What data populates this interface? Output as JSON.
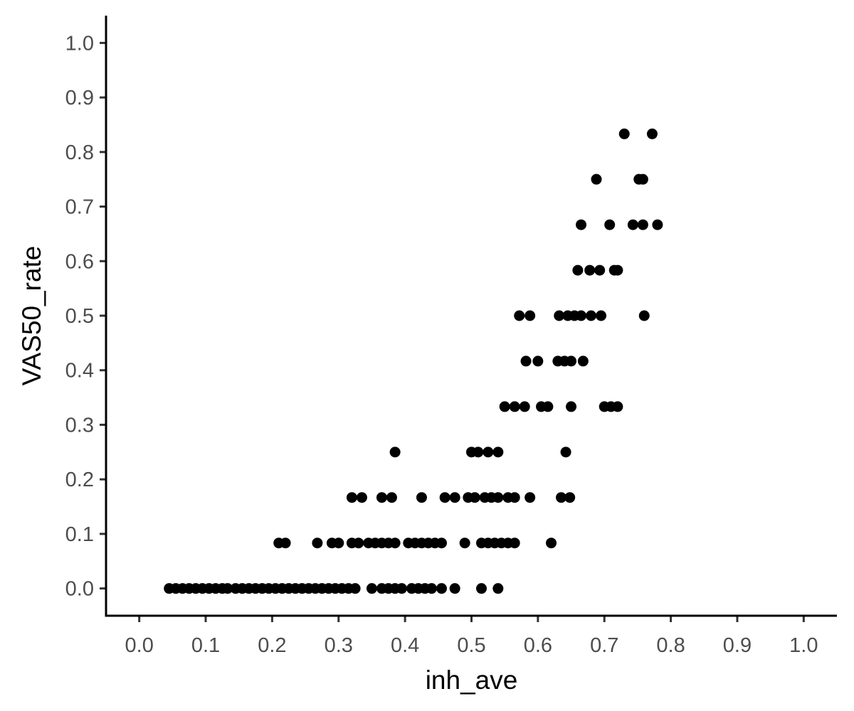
{
  "chart_data": {
    "type": "scatter",
    "xlabel": "inh_ave",
    "ylabel": "VAS50_rate",
    "xlim": [
      -0.05,
      1.05
    ],
    "ylim": [
      -0.05,
      1.05
    ],
    "xticks": [
      "0.0",
      "0.1",
      "0.2",
      "0.3",
      "0.4",
      "0.5",
      "0.6",
      "0.7",
      "0.8",
      "0.9",
      "1.0"
    ],
    "yticks": [
      "0.0",
      "0.1",
      "0.2",
      "0.3",
      "0.4",
      "0.5",
      "0.6",
      "0.7",
      "0.8",
      "0.9",
      "1.0"
    ],
    "grid": false,
    "point_color": "#000000",
    "series": [
      {
        "points": [
          [
            0.045,
            0
          ],
          [
            0.055,
            0
          ],
          [
            0.065,
            0
          ],
          [
            0.075,
            0
          ],
          [
            0.085,
            0
          ],
          [
            0.095,
            0
          ],
          [
            0.105,
            0
          ],
          [
            0.115,
            0
          ],
          [
            0.125,
            0
          ],
          [
            0.133,
            0
          ],
          [
            0.145,
            0
          ],
          [
            0.155,
            0
          ],
          [
            0.165,
            0
          ],
          [
            0.175,
            0
          ],
          [
            0.185,
            0
          ],
          [
            0.195,
            0
          ],
          [
            0.205,
            0
          ],
          [
            0.215,
            0
          ],
          [
            0.225,
            0
          ],
          [
            0.235,
            0
          ],
          [
            0.245,
            0
          ],
          [
            0.255,
            0
          ],
          [
            0.265,
            0
          ],
          [
            0.275,
            0
          ],
          [
            0.285,
            0
          ],
          [
            0.295,
            0
          ],
          [
            0.305,
            0
          ],
          [
            0.315,
            0
          ],
          [
            0.325,
            0
          ],
          [
            0.35,
            0
          ],
          [
            0.365,
            0
          ],
          [
            0.375,
            0
          ],
          [
            0.385,
            0
          ],
          [
            0.395,
            0
          ],
          [
            0.41,
            0
          ],
          [
            0.42,
            0
          ],
          [
            0.43,
            0
          ],
          [
            0.44,
            0
          ],
          [
            0.455,
            0
          ],
          [
            0.475,
            0
          ],
          [
            0.515,
            0
          ],
          [
            0.54,
            0
          ],
          [
            0.21,
            0.0833
          ],
          [
            0.22,
            0.0833
          ],
          [
            0.268,
            0.0833
          ],
          [
            0.29,
            0.0833
          ],
          [
            0.3,
            0.0833
          ],
          [
            0.32,
            0.0833
          ],
          [
            0.33,
            0.0833
          ],
          [
            0.345,
            0.0833
          ],
          [
            0.355,
            0.0833
          ],
          [
            0.365,
            0.0833
          ],
          [
            0.375,
            0.0833
          ],
          [
            0.385,
            0.0833
          ],
          [
            0.405,
            0.0833
          ],
          [
            0.415,
            0.0833
          ],
          [
            0.425,
            0.0833
          ],
          [
            0.435,
            0.0833
          ],
          [
            0.445,
            0.0833
          ],
          [
            0.455,
            0.0833
          ],
          [
            0.49,
            0.0833
          ],
          [
            0.515,
            0.0833
          ],
          [
            0.525,
            0.0833
          ],
          [
            0.535,
            0.0833
          ],
          [
            0.545,
            0.0833
          ],
          [
            0.555,
            0.0833
          ],
          [
            0.565,
            0.0833
          ],
          [
            0.62,
            0.0833
          ],
          [
            0.32,
            0.1667
          ],
          [
            0.335,
            0.1667
          ],
          [
            0.365,
            0.1667
          ],
          [
            0.38,
            0.1667
          ],
          [
            0.425,
            0.1667
          ],
          [
            0.46,
            0.1667
          ],
          [
            0.475,
            0.1667
          ],
          [
            0.495,
            0.1667
          ],
          [
            0.505,
            0.1667
          ],
          [
            0.52,
            0.1667
          ],
          [
            0.53,
            0.1667
          ],
          [
            0.54,
            0.1667
          ],
          [
            0.555,
            0.1667
          ],
          [
            0.565,
            0.1667
          ],
          [
            0.588,
            0.1667
          ],
          [
            0.635,
            0.1667
          ],
          [
            0.648,
            0.1667
          ],
          [
            0.385,
            0.25
          ],
          [
            0.5,
            0.25
          ],
          [
            0.51,
            0.25
          ],
          [
            0.525,
            0.25
          ],
          [
            0.54,
            0.25
          ],
          [
            0.642,
            0.25
          ],
          [
            0.55,
            0.3333
          ],
          [
            0.565,
            0.3333
          ],
          [
            0.58,
            0.3333
          ],
          [
            0.605,
            0.3333
          ],
          [
            0.615,
            0.3333
          ],
          [
            0.65,
            0.3333
          ],
          [
            0.7,
            0.3333
          ],
          [
            0.71,
            0.3333
          ],
          [
            0.72,
            0.3333
          ],
          [
            0.582,
            0.4167
          ],
          [
            0.6,
            0.4167
          ],
          [
            0.63,
            0.4167
          ],
          [
            0.64,
            0.4167
          ],
          [
            0.65,
            0.4167
          ],
          [
            0.668,
            0.4167
          ],
          [
            0.572,
            0.5
          ],
          [
            0.588,
            0.5
          ],
          [
            0.632,
            0.5
          ],
          [
            0.645,
            0.5
          ],
          [
            0.655,
            0.5
          ],
          [
            0.665,
            0.5
          ],
          [
            0.68,
            0.5
          ],
          [
            0.695,
            0.5
          ],
          [
            0.76,
            0.5
          ],
          [
            0.66,
            0.5833
          ],
          [
            0.678,
            0.5833
          ],
          [
            0.693,
            0.5833
          ],
          [
            0.715,
            0.5833
          ],
          [
            0.72,
            0.5833
          ],
          [
            0.665,
            0.6667
          ],
          [
            0.708,
            0.6667
          ],
          [
            0.743,
            0.6667
          ],
          [
            0.758,
            0.6667
          ],
          [
            0.78,
            0.6667
          ],
          [
            0.688,
            0.75
          ],
          [
            0.752,
            0.75
          ],
          [
            0.758,
            0.75
          ],
          [
            0.73,
            0.8333
          ],
          [
            0.772,
            0.8333
          ]
        ]
      }
    ]
  }
}
